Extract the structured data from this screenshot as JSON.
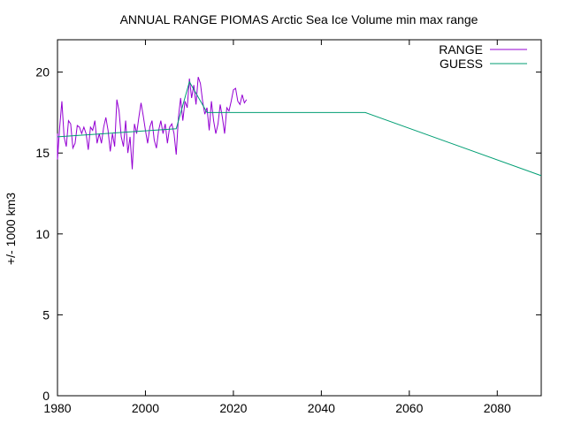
{
  "chart_data": {
    "type": "line",
    "title": "ANNUAL RANGE PIOMAS Arctic Sea Ice Volume min max range",
    "xlabel": "",
    "ylabel": "+/- 1000 km3",
    "xlim": [
      1980,
      2090
    ],
    "ylim": [
      0,
      22
    ],
    "x_ticks": [
      "1980",
      "2000",
      "2020",
      "2040",
      "2060",
      "2080"
    ],
    "y_ticks": [
      "0",
      "5",
      "10",
      "15",
      "20"
    ],
    "grid": false,
    "legend_position": "top-right",
    "series": [
      {
        "name": "RANGE",
        "color": "#9400d3",
        "x": [
          1979.0,
          1979.5,
          1980.0,
          1980.5,
          1981.0,
          1981.5,
          1982.0,
          1982.5,
          1983.0,
          1983.5,
          1984.0,
          1984.5,
          1985.0,
          1985.5,
          1986.0,
          1986.5,
          1987.0,
          1987.5,
          1988.0,
          1988.5,
          1989.0,
          1989.5,
          1990.0,
          1990.5,
          1991.0,
          1991.5,
          1992.0,
          1992.5,
          1993.0,
          1993.5,
          1994.0,
          1994.5,
          1995.0,
          1995.5,
          1996.0,
          1996.5,
          1997.0,
          1997.5,
          1998.0,
          1998.5,
          1999.0,
          1999.5,
          2000.0,
          2000.5,
          2001.0,
          2001.5,
          2002.0,
          2002.5,
          2003.0,
          2003.5,
          2004.0,
          2004.5,
          2005.0,
          2005.5,
          2006.0,
          2006.5,
          2007.0,
          2007.5,
          2008.0,
          2008.5,
          2009.0,
          2009.5,
          2010.0,
          2010.5,
          2011.0,
          2011.5,
          2012.0,
          2012.5,
          2013.0,
          2013.5,
          2014.0,
          2014.5,
          2015.0,
          2015.5,
          2016.0,
          2016.5,
          2017.0,
          2017.5,
          2018.0,
          2018.5,
          2019.0,
          2019.5,
          2020.0,
          2020.5,
          2021.0,
          2021.5,
          2022.0,
          2022.5,
          2023.0
        ],
        "values": [
          15.8,
          16.2,
          14.6,
          16.6,
          18.2,
          16.0,
          15.4,
          17.0,
          16.8,
          15.3,
          15.6,
          16.7,
          16.6,
          16.2,
          16.6,
          16.2,
          15.2,
          16.6,
          16.4,
          17.0,
          15.6,
          16.2,
          15.6,
          16.6,
          17.2,
          16.4,
          15.1,
          16.2,
          15.4,
          18.3,
          17.6,
          16.0,
          15.4,
          17.0,
          15.0,
          16.0,
          14.0,
          16.8,
          16.2,
          17.2,
          18.1,
          17.3,
          16.4,
          15.6,
          16.6,
          17.0,
          15.8,
          15.3,
          16.4,
          17.0,
          16.2,
          16.8,
          15.6,
          16.6,
          16.8,
          16.2,
          14.9,
          17.2,
          18.4,
          17.0,
          18.2,
          17.8,
          19.6,
          18.4,
          19.2,
          18.0,
          19.7,
          19.3,
          18.2,
          17.4,
          17.8,
          16.4,
          18.2,
          17.0,
          16.2,
          16.8,
          18.0,
          17.2,
          16.2,
          17.8,
          17.6,
          18.2,
          18.9,
          19.0,
          18.2,
          18.0,
          18.6,
          18.1,
          18.3
        ]
      },
      {
        "name": "GUESS",
        "color": "#009e73",
        "x": [
          1979,
          2007,
          2010,
          2014,
          2050,
          2090
        ],
        "values": [
          16.0,
          16.5,
          19.4,
          17.5,
          17.5,
          13.6
        ]
      }
    ]
  }
}
